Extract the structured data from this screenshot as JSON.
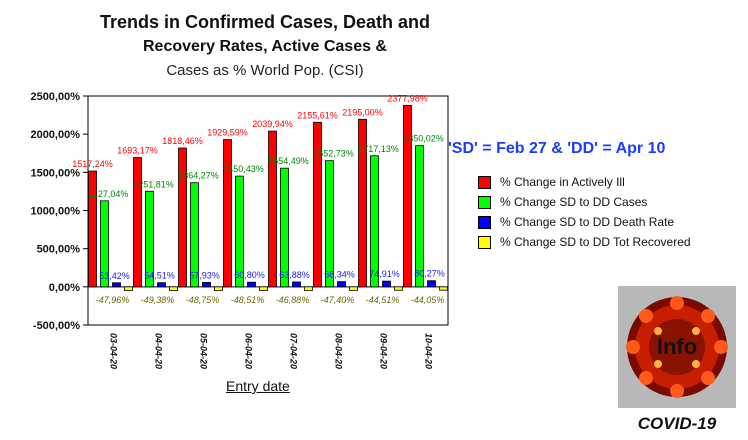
{
  "title": {
    "line1": "Trends in Confirmed Cases, Death and",
    "line2": "Recovery Rates, Active Cases &",
    "line3": "Cases as % World Pop. (CSI)"
  },
  "note": "'SD' = Feb 27 & 'DD' = Apr 10",
  "logo": {
    "text": "Info",
    "caption": "COVID-19"
  },
  "colors": {
    "series": [
      "#ff0000",
      "#00ff00",
      "#0000ff",
      "#ffff00"
    ],
    "value_labels": [
      "#ff0000",
      "#008800",
      "#1a1aff",
      "#666600"
    ],
    "background": "#ffffff"
  },
  "chart_data": {
    "type": "bar",
    "xlabel": "Entry date",
    "ylabel": "",
    "ylim": [
      -500,
      2500
    ],
    "y_ticks": [
      "-500,00%",
      "0,00%",
      "500,00%",
      "1000,00%",
      "1500,00%",
      "2000,00%",
      "2500,00%"
    ],
    "categories": [
      "03-04-20",
      "04-04-20",
      "05-04-20",
      "06-04-20",
      "07-04-20",
      "08-04-20",
      "09-04-20",
      "10-04-20"
    ],
    "series": [
      {
        "name": "% Change in Actively Ill",
        "values": [
          1517.24,
          1693.17,
          1818.46,
          1929.59,
          2039.94,
          2155.61,
          2195.0,
          2377.98
        ],
        "labels": [
          "1517,24%",
          "1693,17%",
          "1818,46%",
          "1929,59%",
          "2039,94%",
          "2155,61%",
          "2195,00%",
          "2377,98%"
        ]
      },
      {
        "name": "% Change SD to DD Cases",
        "values": [
          1127.04,
          1251.81,
          1364.27,
          1450.43,
          1554.49,
          1652.73,
          1717.13,
          1850.02
        ],
        "labels": [
          "1127,04%",
          "1251,81%",
          "1364,27%",
          "1450,43%",
          "1554,49%",
          "1652,73%",
          "1717,13%",
          "1850,02%"
        ]
      },
      {
        "name": "% Change SD to DD Death Rate",
        "values": [
          53.42,
          54.51,
          57.93,
          60.8,
          63.88,
          68.34,
          74.91,
          80.27
        ],
        "labels": [
          "53,42%",
          "54,51%",
          "57,93%",
          "60,80%",
          "63,88%",
          "68,34%",
          "74,91%",
          "80,27%"
        ]
      },
      {
        "name": "% Change SD to DD Tot Recovered",
        "values": [
          -47.96,
          -49.38,
          -48.75,
          -48.51,
          -46.88,
          -47.4,
          -44.51,
          -44.05
        ],
        "labels": [
          "-47,96%",
          "-49,38%",
          "-48,75%",
          "-48,51%",
          "-46,88%",
          "-47,40%",
          "-44,51%",
          "-44,05%"
        ]
      }
    ],
    "grid": false,
    "legend": "right"
  }
}
